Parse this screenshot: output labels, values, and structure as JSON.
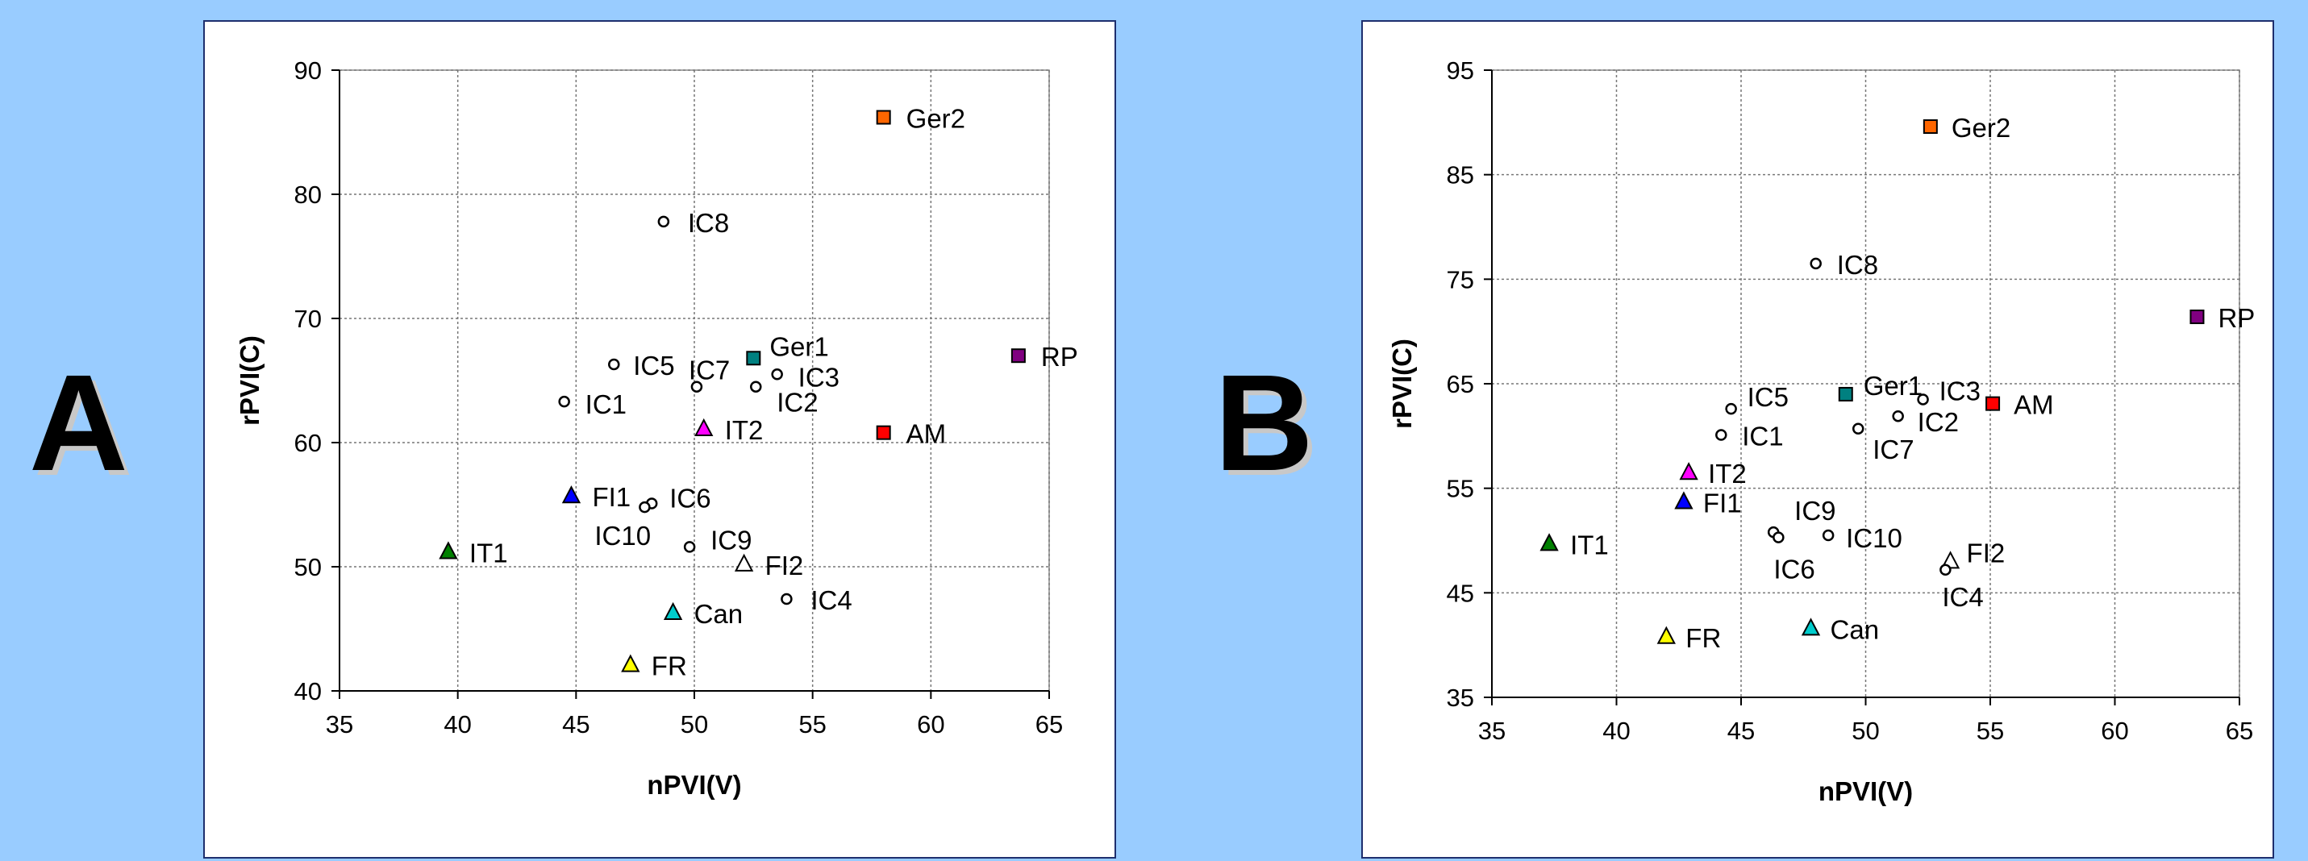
{
  "panels": [
    {
      "letter": "A"
    },
    {
      "letter": "B"
    }
  ],
  "chart_data": [
    {
      "type": "scatter",
      "title": "",
      "xlabel": "nPVI(V)",
      "ylabel": "rPVI(C)",
      "xlim": [
        35,
        65
      ],
      "ylim": [
        40,
        90
      ],
      "xticks": [
        35,
        40,
        45,
        50,
        55,
        60,
        65
      ],
      "yticks": [
        40,
        50,
        60,
        70,
        80,
        90
      ],
      "grid": true,
      "points": [
        {
          "label": "Ger2",
          "x": 58.0,
          "y": 86.2,
          "marker": "square",
          "color": "#ff6600"
        },
        {
          "label": "IC8",
          "x": 48.7,
          "y": 77.8,
          "marker": "circle",
          "color": "#ffffff"
        },
        {
          "label": "Ger1",
          "x": 52.5,
          "y": 66.8,
          "marker": "square",
          "color": "#008080"
        },
        {
          "label": "RP",
          "x": 63.7,
          "y": 67.0,
          "marker": "square",
          "color": "#800080"
        },
        {
          "label": "IC5",
          "x": 46.6,
          "y": 66.3,
          "marker": "circle",
          "color": "#ffffff"
        },
        {
          "label": "IC7",
          "x": 50.1,
          "y": 64.5,
          "marker": "circle",
          "color": "#ffffff"
        },
        {
          "label": "IC3",
          "x": 53.5,
          "y": 65.5,
          "marker": "circle",
          "color": "#ffffff"
        },
        {
          "label": "IC2",
          "x": 52.6,
          "y": 64.5,
          "marker": "circle",
          "color": "#ffffff"
        },
        {
          "label": "IC1",
          "x": 44.5,
          "y": 63.3,
          "marker": "circle",
          "color": "#ffffff"
        },
        {
          "label": "IT2",
          "x": 50.4,
          "y": 61.1,
          "marker": "triangle",
          "color": "#ff00ff"
        },
        {
          "label": "AM",
          "x": 58.0,
          "y": 60.8,
          "marker": "square",
          "color": "#ff0000"
        },
        {
          "label": "FI1",
          "x": 44.8,
          "y": 55.7,
          "marker": "triangle",
          "color": "#0000ff"
        },
        {
          "label": "IC6",
          "x": 48.2,
          "y": 55.1,
          "marker": "circle",
          "color": "#ffffff"
        },
        {
          "label": "IC10",
          "x": 47.9,
          "y": 54.8,
          "marker": "circle",
          "color": "#ffffff"
        },
        {
          "label": "IC9",
          "x": 49.8,
          "y": 51.6,
          "marker": "circle",
          "color": "#ffffff"
        },
        {
          "label": "IT1",
          "x": 39.6,
          "y": 51.2,
          "marker": "triangle",
          "color": "#008000"
        },
        {
          "label": "FI2",
          "x": 52.1,
          "y": 50.2,
          "marker": "triangle",
          "color": "#ffffff"
        },
        {
          "label": "IC4",
          "x": 53.9,
          "y": 47.4,
          "marker": "circle",
          "color": "#ffffff"
        },
        {
          "label": "Can",
          "x": 49.1,
          "y": 46.3,
          "marker": "triangle",
          "color": "#00cccc"
        },
        {
          "label": "FR",
          "x": 47.3,
          "y": 42.1,
          "marker": "triangle",
          "color": "#ffff00"
        }
      ]
    },
    {
      "type": "scatter",
      "title": "",
      "xlabel": "nPVI(V)",
      "ylabel": "rPVI(C)",
      "xlim": [
        35,
        65
      ],
      "ylim": [
        35,
        95
      ],
      "xticks": [
        35,
        40,
        45,
        50,
        55,
        60,
        65
      ],
      "yticks": [
        35,
        45,
        55,
        65,
        75,
        85,
        95
      ],
      "grid": true,
      "points": [
        {
          "label": "Ger2",
          "x": 52.6,
          "y": 89.6,
          "marker": "square",
          "color": "#ff6600"
        },
        {
          "label": "IC8",
          "x": 48.0,
          "y": 76.5,
          "marker": "circle",
          "color": "#ffffff"
        },
        {
          "label": "RP",
          "x": 63.3,
          "y": 71.4,
          "marker": "square",
          "color": "#800080"
        },
        {
          "label": "Ger1",
          "x": 49.2,
          "y": 64.0,
          "marker": "square",
          "color": "#008080"
        },
        {
          "label": "IC3",
          "x": 52.3,
          "y": 63.5,
          "marker": "circle",
          "color": "#ffffff"
        },
        {
          "label": "AM",
          "x": 55.1,
          "y": 63.1,
          "marker": "square",
          "color": "#ff0000"
        },
        {
          "label": "IC5",
          "x": 44.6,
          "y": 62.6,
          "marker": "circle",
          "color": "#ffffff"
        },
        {
          "label": "IC2",
          "x": 51.3,
          "y": 61.9,
          "marker": "circle",
          "color": "#ffffff"
        },
        {
          "label": "IC7",
          "x": 49.7,
          "y": 60.7,
          "marker": "circle",
          "color": "#ffffff"
        },
        {
          "label": "IC1",
          "x": 44.2,
          "y": 60.1,
          "marker": "circle",
          "color": "#ffffff"
        },
        {
          "label": "IT2",
          "x": 42.9,
          "y": 56.5,
          "marker": "triangle",
          "color": "#ff00ff"
        },
        {
          "label": "FI1",
          "x": 42.7,
          "y": 53.7,
          "marker": "triangle",
          "color": "#0000ff"
        },
        {
          "label": "IC9",
          "x": 46.3,
          "y": 50.8,
          "marker": "circle",
          "color": "#ffffff"
        },
        {
          "label": "IC6",
          "x": 46.5,
          "y": 50.3,
          "marker": "circle",
          "color": "#ffffff"
        },
        {
          "label": "IC10",
          "x": 48.5,
          "y": 50.5,
          "marker": "circle",
          "color": "#ffffff"
        },
        {
          "label": "IT1",
          "x": 37.3,
          "y": 49.7,
          "marker": "triangle",
          "color": "#008000"
        },
        {
          "label": "FI2",
          "x": 53.4,
          "y": 48.0,
          "marker": "triangle",
          "color": "#ffffff"
        },
        {
          "label": "IC4",
          "x": 53.2,
          "y": 47.2,
          "marker": "circle",
          "color": "#ffffff"
        },
        {
          "label": "Can",
          "x": 47.8,
          "y": 41.6,
          "marker": "triangle",
          "color": "#00cccc"
        },
        {
          "label": "FR",
          "x": 42.0,
          "y": 40.8,
          "marker": "triangle",
          "color": "#ffff00"
        }
      ]
    }
  ]
}
